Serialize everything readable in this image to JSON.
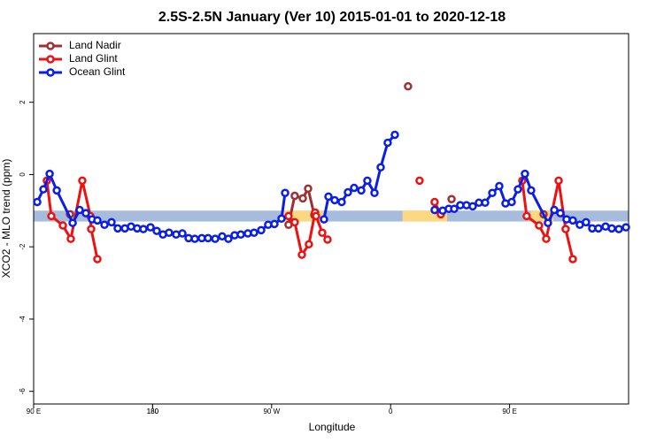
{
  "chart_data": {
    "type": "line",
    "title": "2.5S-2.5N January (Ver 10)   2015-01-01 to 2020-12-18",
    "xlabel": "Longitude",
    "ylabel": "XCO2 - MLO trend (ppm)",
    "xlim": [
      90,
      540
    ],
    "ylim": [
      -6.35,
      3.9
    ],
    "xticks": [
      {
        "value": 90,
        "label": "90 E"
      },
      180,
      {
        "value": 270,
        "label": "90 W"
      },
      {
        "value": 360,
        "label": "0"
      },
      {
        "value": 450,
        "label": "90 E"
      },
      180
    ],
    "yticks": [
      -6,
      -4,
      -2,
      0,
      2
    ],
    "legend": "top-left",
    "bands": [
      {
        "ylim": [
          -1.3,
          -1.0
        ],
        "color": "#a7bcdc"
      }
    ],
    "highlights": [
      {
        "xlim": [
          277.5,
          309
        ],
        "ylim": [
          -1.3,
          -1.0
        ],
        "color": "#fcd882"
      },
      {
        "xlim": [
          369,
          402.7
        ],
        "ylim": [
          -1.3,
          -1.0
        ],
        "color": "#fcd882"
      },
      {
        "xlim": [
          466,
          483
        ],
        "ylim": [
          -1.3,
          -1.0
        ],
        "color": "#fcd882"
      }
    ],
    "series": [
      {
        "name": "Land Nadir",
        "color": "#a03030",
        "x": [
          117.5,
          null,
          282.8,
          287.5,
          293.6,
          297.6,
          302.3,
          null,
          373.2,
          null,
          406.1,
          null,
          475.7
        ],
        "values": [
          -1.1,
          null,
          -1.39,
          -0.59,
          -0.66,
          -0.39,
          -1.12,
          null,
          2.44,
          null,
          -0.68,
          null,
          -1.1
        ]
      },
      {
        "name": "Land Glint",
        "color": "#ee1111",
        "x": [
          100.0,
          103.4,
          112.1,
          118.1,
          126.8,
          132.9,
          133.5,
          138.2,
          null,
          282.8,
          287.5,
          292.9,
          298.2,
          302.9,
          303.6,
          308.3,
          312.3,
          null,
          381.9,
          null,
          393.3,
          398.0,
          null,
          459.6,
          462.9,
          472.3,
          477.7,
          487.1,
          492.4,
          497.8
        ],
        "values": [
          -0.17,
          -1.15,
          -1.41,
          -1.78,
          -0.17,
          -1.15,
          -1.51,
          -2.34,
          null,
          -1.15,
          -1.32,
          -2.22,
          -1.93,
          -1.05,
          -1.15,
          -1.61,
          -1.8,
          null,
          -0.17,
          null,
          -0.76,
          -1.1,
          null,
          -0.17,
          -1.15,
          -1.41,
          -1.78,
          -0.17,
          -1.51,
          -2.34
        ]
      },
      {
        "name": "Ocean Glint",
        "color": "#0a1ee6",
        "x": [
          92.7,
          97.4,
          102.1,
          107.5,
          119.5,
          124.8,
          129.5,
          134.2,
          138.2,
          143.6,
          148.9,
          153.6,
          159.0,
          163.7,
          168.3,
          173.0,
          178.4,
          183.1,
          187.8,
          192.4,
          197.8,
          202.5,
          207.2,
          211.9,
          217.2,
          221.9,
          227.3,
          232.6,
          237.3,
          242.0,
          246.7,
          252.0,
          256.7,
          262.1,
          267.4,
          272.1,
          277.5,
          280.2,
          null,
          309.6,
          313.0,
          317.7,
          323.0,
          327.7,
          332.4,
          337.8,
          342.4,
          347.8,
          352.5,
          357.8,
          363.2,
          null,
          393.3,
          399.4,
          404.0,
          408.1,
          412.7,
          417.4,
          422.1,
          426.8,
          431.5,
          436.9,
          442.2,
          446.9,
          451.6,
          456.3,
          461.6,
          466.3,
          479.0,
          483.8,
          488.4,
          493.1,
          497.8,
          503.1,
          507.8,
          512.5,
          517.2,
          522.6,
          527.3,
          532.6,
          538.0
        ],
        "values": [
          -0.76,
          -0.41,
          0.02,
          -0.44,
          -1.34,
          -0.98,
          -1.07,
          -1.24,
          -1.27,
          -1.39,
          -1.32,
          -1.49,
          -1.49,
          -1.44,
          -1.49,
          -1.51,
          -1.46,
          -1.56,
          -1.66,
          -1.61,
          -1.66,
          -1.63,
          -1.76,
          -1.78,
          -1.76,
          -1.76,
          -1.78,
          -1.71,
          -1.78,
          -1.68,
          -1.66,
          -1.63,
          -1.61,
          -1.54,
          -1.39,
          -1.37,
          -1.22,
          -0.51,
          null,
          -1.24,
          -0.61,
          -0.71,
          -0.76,
          -0.49,
          -0.37,
          -0.44,
          -0.17,
          -0.51,
          0.2,
          0.88,
          1.1,
          null,
          -0.98,
          -1.0,
          -0.95,
          -0.95,
          -0.85,
          -0.85,
          -0.88,
          -0.78,
          -0.78,
          -0.51,
          -0.32,
          -0.8,
          -0.76,
          -0.41,
          0.02,
          -0.44,
          -1.34,
          -0.98,
          -1.07,
          -1.24,
          -1.27,
          -1.39,
          -1.32,
          -1.49,
          -1.49,
          -1.44,
          -1.49,
          -1.51,
          -1.46
        ]
      }
    ]
  }
}
